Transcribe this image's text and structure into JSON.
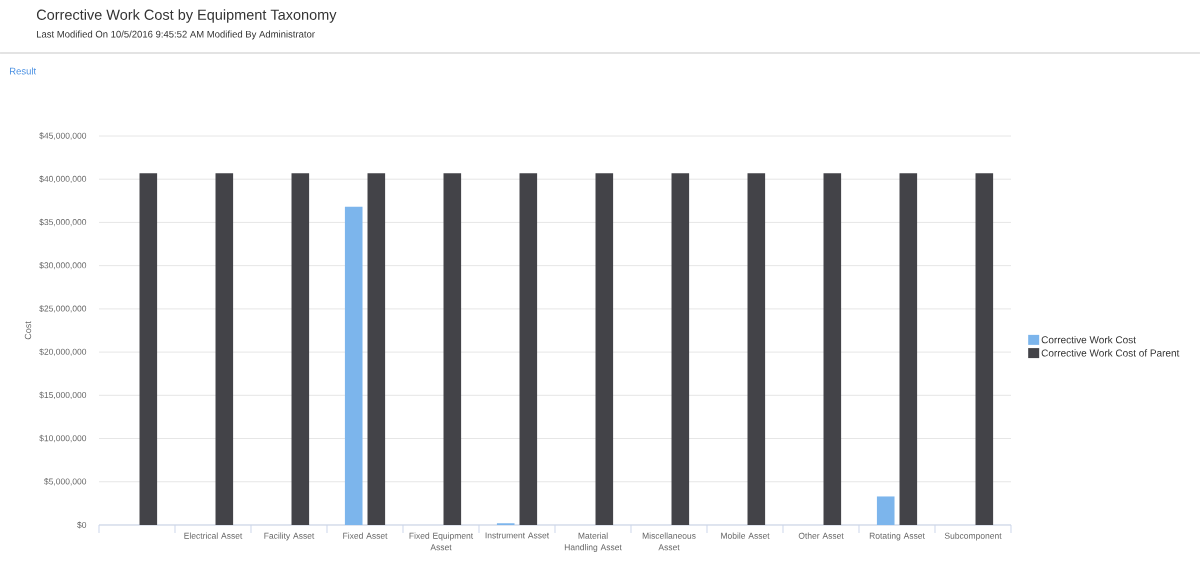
{
  "chart_data": {
    "type": "bar",
    "title": "Corrective Work Cost by Equipment Taxonomy",
    "subtitle": "Last Modified On 10/5/2016 9:45:52 AM Modified By Administrator",
    "annotations": [
      "Result"
    ],
    "ylabel": "Cost",
    "categories": [
      null,
      "Electrical Asset",
      "Facility Asset",
      "Fixed Asset",
      "Fixed Equipment Asset",
      "Instrument Asset",
      "Material Handling Asset",
      "Miscellaneous Asset",
      "Mobile Asset",
      "Other Asset",
      "Rotating Asset",
      "Subcomponent"
    ],
    "series": [
      {
        "name": "Corrective Work Cost",
        "color": "#7cb5ec",
        "values": [
          null,
          null,
          null,
          36800000,
          null,
          200000,
          null,
          null,
          null,
          null,
          3300000,
          null
        ]
      },
      {
        "name": "Corrective Work Cost of Parent",
        "color": "#434348",
        "values": [
          40700000,
          40700000,
          40700000,
          40700000,
          40700000,
          40700000,
          40700000,
          40700000,
          40700000,
          40700000,
          40700000,
          40700000
        ]
      }
    ],
    "ylim": [
      0,
      45000000
    ],
    "yticks": [
      {
        "value": 0,
        "label": "$0"
      },
      {
        "value": 5000000,
        "label": "$5,000,000"
      },
      {
        "value": 10000000,
        "label": "$10,000,000"
      },
      {
        "value": 15000000,
        "label": "$15,000,000"
      },
      {
        "value": 20000000,
        "label": "$20,000,000"
      },
      {
        "value": 25000000,
        "label": "$25,000,000"
      },
      {
        "value": 30000000,
        "label": "$30,000,000"
      },
      {
        "value": 35000000,
        "label": "$35,000,000"
      },
      {
        "value": 40000000,
        "label": "$40,000,000"
      },
      {
        "value": 45000000,
        "label": "$45,000,000"
      }
    ],
    "grid": "y",
    "legend": "right"
  }
}
